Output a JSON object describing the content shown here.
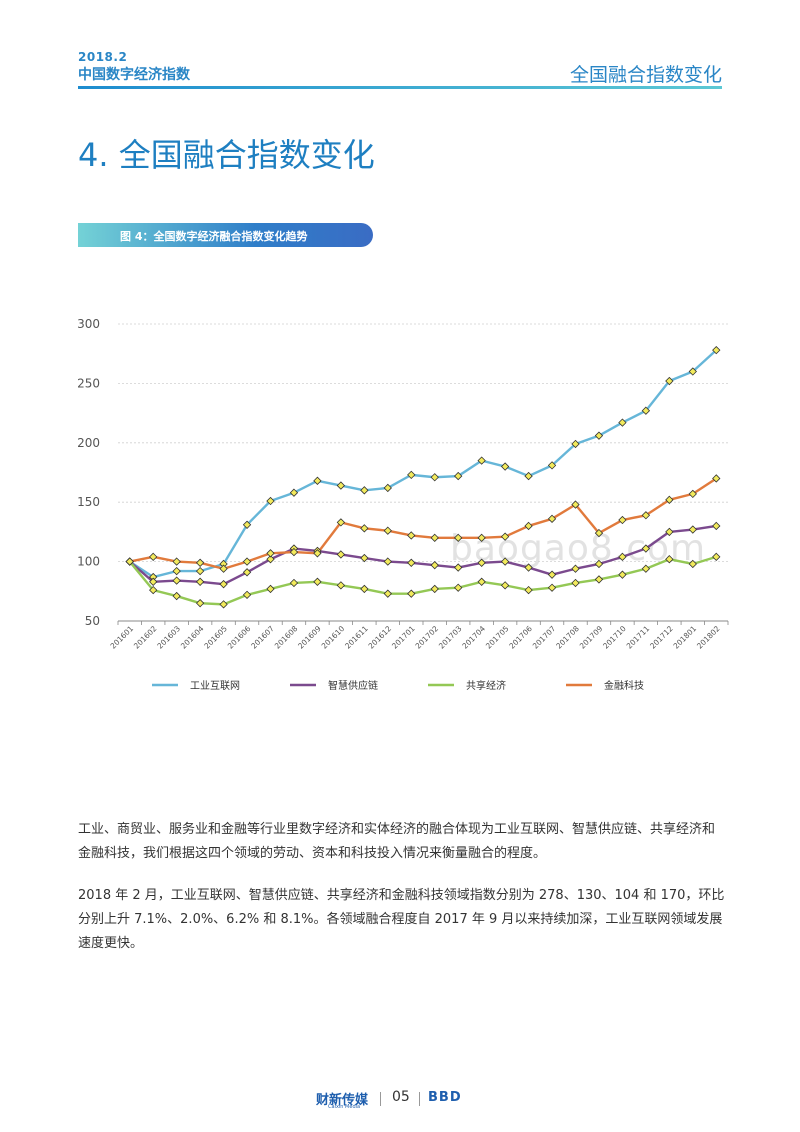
{
  "header": {
    "year": "2018.2",
    "report_title": "中国数字经济指数",
    "section_name": "全国融合指数变化"
  },
  "section_title": "4. 全国融合指数变化",
  "figure_caption": "图 4：全国数字经济融合指数变化趋势",
  "watermark": "baogao8.com",
  "chart_data": {
    "type": "line",
    "categories": [
      "201601",
      "201602",
      "201603",
      "201604",
      "201605",
      "201606",
      "201607",
      "201608",
      "201609",
      "201610",
      "201611",
      "201612",
      "201701",
      "201702",
      "201703",
      "201704",
      "201705",
      "201706",
      "201707",
      "201708",
      "201709",
      "201710",
      "201711",
      "201712",
      "201801",
      "201802"
    ],
    "ylim": [
      50,
      300
    ],
    "yticks": [
      50,
      100,
      150,
      200,
      250,
      300
    ],
    "grid": true,
    "legend_position": "bottom",
    "series": [
      {
        "name": "工业互联网",
        "color": "#66b6d8",
        "values": [
          100,
          87,
          92,
          92,
          98,
          131,
          151,
          158,
          168,
          164,
          160,
          162,
          173,
          171,
          172,
          185,
          180,
          172,
          181,
          199,
          206,
          217,
          227,
          252,
          260,
          278
        ]
      },
      {
        "name": "智慧供应链",
        "color": "#7b4a8e",
        "values": [
          100,
          83,
          84,
          83,
          81,
          91,
          102,
          111,
          109,
          106,
          103,
          100,
          99,
          97,
          95,
          99,
          100,
          95,
          89,
          94,
          98,
          104,
          111,
          125,
          127,
          130
        ]
      },
      {
        "name": "共享经济",
        "color": "#94c855",
        "values": [
          100,
          76,
          71,
          65,
          64,
          72,
          77,
          82,
          83,
          80,
          77,
          73,
          73,
          77,
          78,
          83,
          80,
          76,
          78,
          82,
          85,
          89,
          94,
          102,
          98,
          104
        ]
      },
      {
        "name": "金融科技",
        "color": "#e17a3c",
        "values": [
          100,
          104,
          100,
          99,
          94,
          100,
          107,
          108,
          107,
          133,
          128,
          126,
          122,
          120,
          120,
          120,
          121,
          130,
          136,
          148,
          124,
          135,
          139,
          152,
          157,
          170
        ]
      }
    ]
  },
  "paragraphs": [
    "工业、商贸业、服务业和金融等行业里数字经济和实体经济的融合体现为工业互联网、智慧供应链、共享经济和金融科技，我们根据这四个领域的劳动、资本和科技投入情况来衡量融合的程度。",
    "2018 年 2 月，工业互联网、智慧供应链、共享经济和金融科技领域指数分别为 278、130、104 和 170，环比分别上升 7.1%、2.0%、6.2% 和 8.1%。各领域融合程度自 2017 年 9 月以来持续加深，工业互联网领域发展速度更快。"
  ],
  "footer": {
    "publisher_logo": "财新传媒",
    "publisher_logo_sub": "Caixin Media",
    "page_number": "05",
    "partner_logo": "BBD"
  }
}
